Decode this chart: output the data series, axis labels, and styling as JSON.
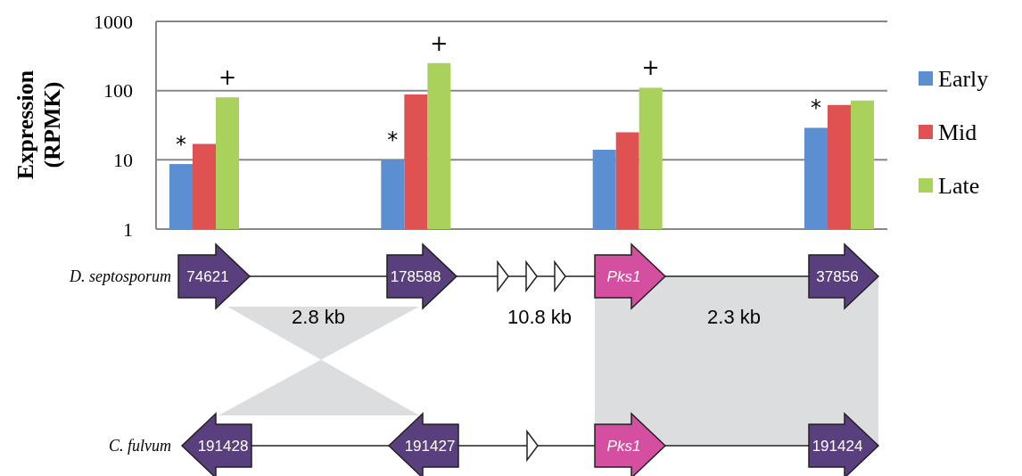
{
  "chart_data": {
    "type": "bar",
    "log": "y",
    "ylabel": "Expression (RPMK)",
    "categories": [
      null,
      null,
      null,
      null
    ],
    "series": [
      {
        "name": "Early",
        "color": "#5b8fd1",
        "values": [
          8.7,
          10,
          14,
          29
        ],
        "value_labels": [
          "*",
          "*",
          null,
          "*"
        ]
      },
      {
        "name": "Mid",
        "color": "#e05252",
        "values": [
          17,
          88,
          25,
          62
        ]
      },
      {
        "name": "Late",
        "color": "#a9d25c",
        "values": [
          80,
          250,
          110,
          72
        ],
        "value_labels": [
          "+",
          "+",
          "+",
          null
        ]
      }
    ],
    "ylim": [
      1,
      1000
    ],
    "yticks": [
      1,
      10,
      100,
      1000
    ],
    "grid": "y",
    "legend": "right",
    "annotations": [
      "D. septosporum",
      "C. fulvum",
      "74621",
      "178588",
      "Pks1",
      "37856",
      "191428",
      "191427",
      "Pks1",
      "191424",
      "2.8 kb",
      "10.8 kb",
      "2.3 kb"
    ]
  }
}
